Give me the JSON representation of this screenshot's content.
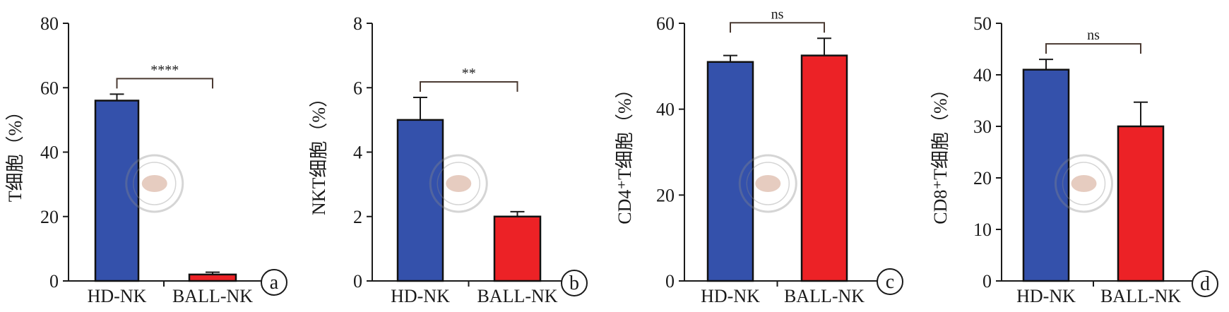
{
  "colors": {
    "hd_bar": "#3451ab",
    "ball_bar": "#ec2226",
    "axis": "#1a1a1a",
    "bracket": "#4a3a32"
  },
  "chart_data": [
    {
      "type": "bar",
      "panel_label": "a",
      "ylabel": "T细胞（%）",
      "categories": [
        "HD-NK",
        "BALL-NK"
      ],
      "values": [
        56,
        2
      ],
      "errors": [
        2,
        0.7
      ],
      "ylim": [
        0,
        80
      ],
      "yticks": [
        0,
        20,
        40,
        60,
        80
      ],
      "significance": "****",
      "grid": false
    },
    {
      "type": "bar",
      "panel_label": "b",
      "ylabel": "NKT细胞（%）",
      "categories": [
        "HD-NK",
        "BALL-NK"
      ],
      "values": [
        5,
        2
      ],
      "errors": [
        0.7,
        0.15
      ],
      "ylim": [
        0,
        8
      ],
      "yticks": [
        0,
        2,
        4,
        6,
        8
      ],
      "significance": "**",
      "grid": false
    },
    {
      "type": "bar",
      "panel_label": "c",
      "ylabel": "CD4⁺T细胞（%）",
      "categories": [
        "HD-NK",
        "BALL-NK"
      ],
      "values": [
        51,
        52.5
      ],
      "errors": [
        1.5,
        4
      ],
      "ylim": [
        0,
        60
      ],
      "yticks": [
        0,
        20,
        40,
        60
      ],
      "significance": "ns",
      "grid": false
    },
    {
      "type": "bar",
      "panel_label": "d",
      "ylabel": "CD8⁺T细胞（%）",
      "categories": [
        "HD-NK",
        "BALL-NK"
      ],
      "values": [
        41,
        30
      ],
      "errors": [
        2,
        4.7
      ],
      "ylim": [
        0,
        50
      ],
      "yticks": [
        0,
        10,
        20,
        30,
        40,
        50
      ],
      "significance": "ns",
      "grid": false
    }
  ]
}
